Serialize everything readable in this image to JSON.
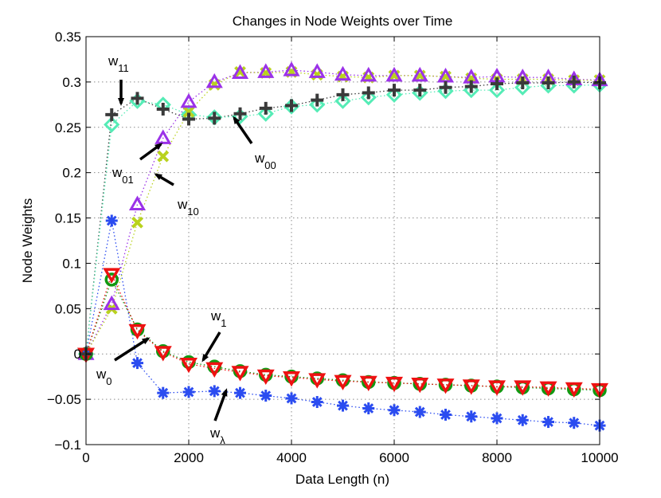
{
  "chart_data": {
    "type": "line",
    "title": "Changes in Node Weights over Time",
    "xlabel": "Data Length (n)",
    "ylabel": "Node Weights",
    "xlim": [
      0,
      10000
    ],
    "ylim": [
      -0.1,
      0.35
    ],
    "grid": true,
    "x_ticks": [
      0,
      2000,
      4000,
      6000,
      8000,
      10000
    ],
    "x_tick_labels": [
      "0",
      "2000",
      "4000",
      "6000",
      "8000",
      "10000"
    ],
    "y_ticks": [
      -0.1,
      -0.05,
      0,
      0.05,
      0.1,
      0.15,
      0.2,
      0.25,
      0.3,
      0.35
    ],
    "y_tick_labels": [
      "−0.1",
      "−0.05",
      "0",
      "0.05",
      "0.1",
      "0.15",
      "0.2",
      "0.25",
      "0.3",
      "0.35"
    ],
    "x": [
      0,
      500,
      1000,
      1500,
      2000,
      2500,
      3000,
      3500,
      4000,
      4500,
      5000,
      5500,
      6000,
      6500,
      7000,
      7500,
      8000,
      8500,
      9000,
      9500,
      10000
    ],
    "series": [
      {
        "name": "w_lambda",
        "marker": "asterisk",
        "color": "#2b4cf0",
        "values": [
          0,
          0.147,
          -0.01,
          -0.043,
          -0.042,
          -0.041,
          -0.043,
          -0.046,
          -0.049,
          -0.053,
          -0.057,
          -0.06,
          -0.062,
          -0.064,
          -0.067,
          -0.069,
          -0.071,
          -0.073,
          -0.075,
          -0.076,
          -0.079
        ]
      },
      {
        "name": "w_0",
        "marker": "circle",
        "color": "#119911",
        "values": [
          0,
          0.082,
          0.027,
          0.003,
          -0.009,
          -0.014,
          -0.019,
          -0.023,
          -0.025,
          -0.027,
          -0.029,
          -0.031,
          -0.032,
          -0.033,
          -0.034,
          -0.035,
          -0.036,
          -0.037,
          -0.038,
          -0.039,
          -0.04
        ]
      },
      {
        "name": "w_1",
        "marker": "triangle-down",
        "color": "#ee1111",
        "values": [
          0,
          0.088,
          0.026,
          0.002,
          -0.011,
          -0.016,
          -0.02,
          -0.024,
          -0.026,
          -0.028,
          -0.03,
          -0.031,
          -0.032,
          -0.033,
          -0.034,
          -0.035,
          -0.036,
          -0.036,
          -0.037,
          -0.038,
          -0.039
        ]
      },
      {
        "name": "w_00",
        "marker": "plus",
        "color": "#3a3a3a",
        "values": [
          0,
          0.264,
          0.282,
          0.27,
          0.259,
          0.26,
          0.265,
          0.271,
          0.274,
          0.28,
          0.286,
          0.288,
          0.291,
          0.291,
          0.294,
          0.295,
          0.298,
          0.299,
          0.299,
          0.3,
          0.299
        ]
      },
      {
        "name": "w_01",
        "marker": "triangle-up",
        "color": "#9b32e8",
        "values": [
          0,
          0.055,
          0.165,
          0.238,
          0.278,
          0.3,
          0.31,
          0.311,
          0.313,
          0.311,
          0.308,
          0.307,
          0.307,
          0.307,
          0.306,
          0.305,
          0.306,
          0.305,
          0.305,
          0.303,
          0.302
        ]
      },
      {
        "name": "w_10",
        "marker": "x",
        "color": "#b9d21e",
        "values": [
          0,
          0.05,
          0.145,
          0.218,
          0.267,
          0.297,
          0.311,
          0.31,
          0.311,
          0.308,
          0.306,
          0.305,
          0.307,
          0.307,
          0.306,
          0.304,
          0.303,
          0.303,
          0.303,
          0.302,
          0.302
        ]
      },
      {
        "name": "w_11",
        "marker": "diamond",
        "color": "#55ecb6",
        "values": [
          0,
          0.253,
          0.279,
          0.275,
          0.264,
          0.261,
          0.262,
          0.265,
          0.273,
          0.275,
          0.279,
          0.283,
          0.286,
          0.288,
          0.29,
          0.291,
          0.291,
          0.294,
          0.296,
          0.296,
          0.297
        ]
      }
    ],
    "annotations": [
      {
        "base": "w",
        "sub": "11",
        "series": "w_11"
      },
      {
        "base": "w",
        "sub": "01",
        "series": "w_01"
      },
      {
        "base": "w",
        "sub": "10",
        "series": "w_10"
      },
      {
        "base": "w",
        "sub": "00",
        "series": "w_00"
      },
      {
        "base": "w",
        "sub": "1",
        "series": "w_1"
      },
      {
        "base": "w",
        "sub": "0",
        "series": "w_0"
      },
      {
        "base": "w",
        "sub": "λ",
        "series": "w_lambda"
      }
    ]
  }
}
